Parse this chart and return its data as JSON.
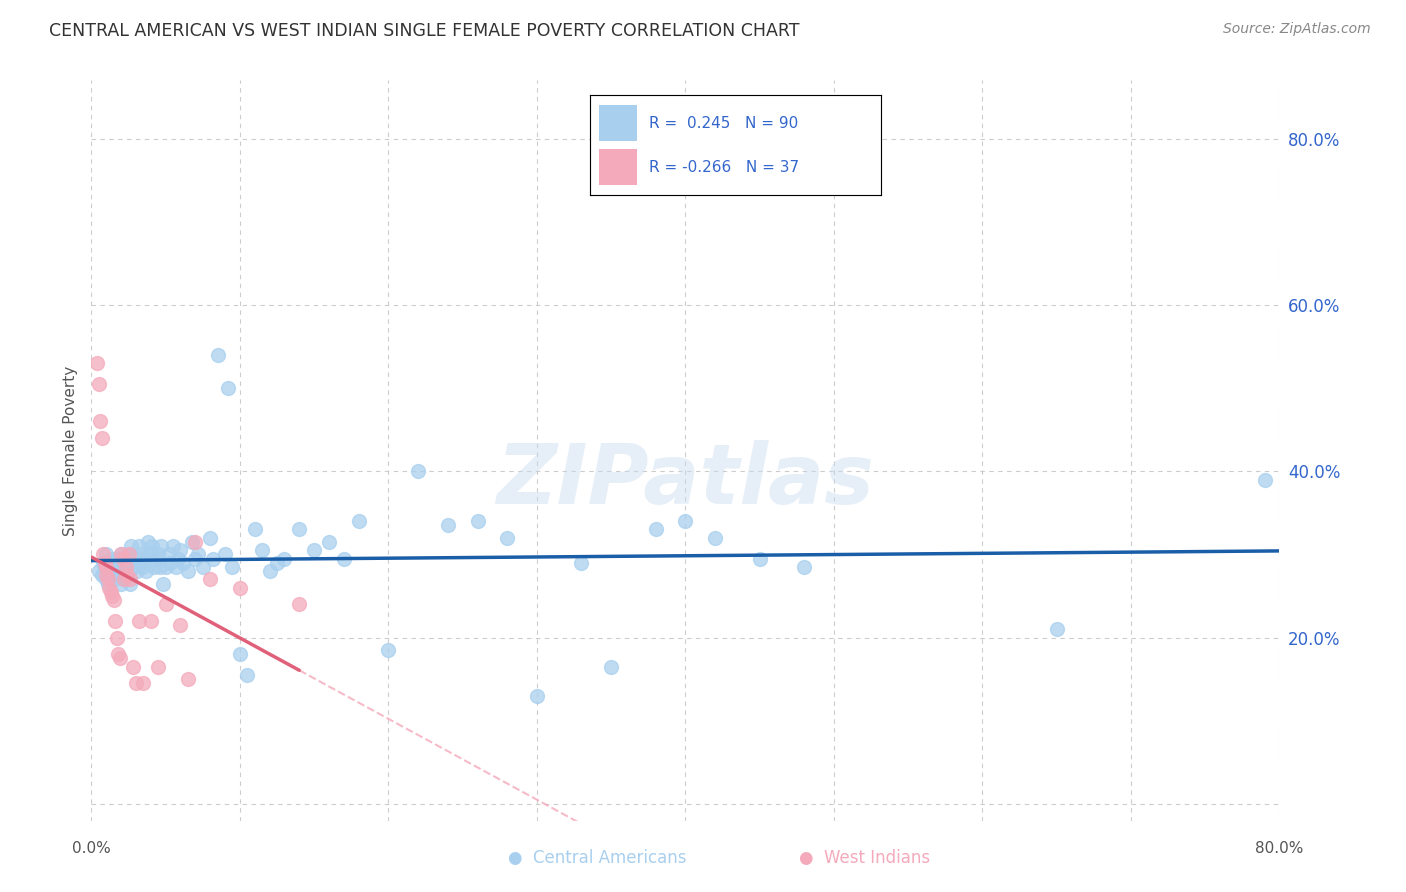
{
  "title": "CENTRAL AMERICAN VS WEST INDIAN SINGLE FEMALE POVERTY CORRELATION CHART",
  "source": "Source: ZipAtlas.com",
  "ylabel": "Single Female Poverty",
  "watermark": "ZIPatlas",
  "xlim": [
    0.0,
    0.8
  ],
  "ylim": [
    -0.02,
    0.87
  ],
  "yticks": [
    0.0,
    0.2,
    0.4,
    0.6,
    0.8
  ],
  "blue_R": 0.245,
  "blue_N": 90,
  "pink_R": -0.266,
  "pink_N": 37,
  "blue_color": "#A8CFEE",
  "pink_color": "#F4AABB",
  "blue_line_color": "#1A5EA8",
  "pink_line_color": "#E0607A",
  "pink_line_dash_color": "#F4AABB",
  "title_color": "#333333",
  "source_color": "#888888",
  "legend_text_color": "#3366CC",
  "right_axis_color": "#3366CC",
  "grid_color": "#CCCCCC",
  "background_color": "#FFFFFF",
  "blue_x": [
    0.005,
    0.007,
    0.008,
    0.009,
    0.01,
    0.01,
    0.011,
    0.012,
    0.013,
    0.014,
    0.015,
    0.016,
    0.017,
    0.018,
    0.019,
    0.02,
    0.02,
    0.021,
    0.022,
    0.022,
    0.023,
    0.024,
    0.025,
    0.025,
    0.026,
    0.027,
    0.028,
    0.03,
    0.031,
    0.032,
    0.033,
    0.034,
    0.035,
    0.036,
    0.037,
    0.038,
    0.04,
    0.041,
    0.042,
    0.043,
    0.045,
    0.046,
    0.047,
    0.048,
    0.05,
    0.052,
    0.053,
    0.055,
    0.057,
    0.058,
    0.06,
    0.062,
    0.065,
    0.068,
    0.07,
    0.072,
    0.075,
    0.08,
    0.082,
    0.085,
    0.09,
    0.092,
    0.095,
    0.1,
    0.105,
    0.11,
    0.115,
    0.12,
    0.125,
    0.13,
    0.14,
    0.15,
    0.16,
    0.17,
    0.18,
    0.2,
    0.22,
    0.24,
    0.26,
    0.28,
    0.3,
    0.33,
    0.35,
    0.38,
    0.4,
    0.42,
    0.45,
    0.48,
    0.65,
    0.79
  ],
  "blue_y": [
    0.28,
    0.275,
    0.29,
    0.285,
    0.3,
    0.27,
    0.265,
    0.285,
    0.295,
    0.28,
    0.275,
    0.27,
    0.295,
    0.285,
    0.275,
    0.3,
    0.265,
    0.28,
    0.295,
    0.27,
    0.285,
    0.29,
    0.3,
    0.275,
    0.265,
    0.31,
    0.285,
    0.295,
    0.28,
    0.31,
    0.3,
    0.285,
    0.29,
    0.295,
    0.28,
    0.315,
    0.3,
    0.31,
    0.285,
    0.295,
    0.3,
    0.285,
    0.31,
    0.265,
    0.285,
    0.3,
    0.29,
    0.31,
    0.285,
    0.295,
    0.305,
    0.29,
    0.28,
    0.315,
    0.295,
    0.3,
    0.285,
    0.32,
    0.295,
    0.54,
    0.3,
    0.5,
    0.285,
    0.18,
    0.155,
    0.33,
    0.305,
    0.28,
    0.29,
    0.295,
    0.33,
    0.305,
    0.315,
    0.295,
    0.34,
    0.185,
    0.4,
    0.335,
    0.34,
    0.32,
    0.13,
    0.29,
    0.165,
    0.33,
    0.34,
    0.32,
    0.295,
    0.285,
    0.21,
    0.39
  ],
  "pink_x": [
    0.004,
    0.005,
    0.006,
    0.007,
    0.008,
    0.009,
    0.01,
    0.01,
    0.011,
    0.012,
    0.013,
    0.014,
    0.015,
    0.016,
    0.017,
    0.018,
    0.019,
    0.02,
    0.021,
    0.022,
    0.023,
    0.024,
    0.025,
    0.026,
    0.028,
    0.03,
    0.032,
    0.035,
    0.04,
    0.045,
    0.05,
    0.06,
    0.065,
    0.07,
    0.08,
    0.1,
    0.14
  ],
  "pink_y": [
    0.53,
    0.505,
    0.46,
    0.44,
    0.3,
    0.29,
    0.285,
    0.275,
    0.27,
    0.26,
    0.255,
    0.25,
    0.245,
    0.22,
    0.2,
    0.18,
    0.175,
    0.3,
    0.295,
    0.27,
    0.285,
    0.275,
    0.3,
    0.27,
    0.165,
    0.145,
    0.22,
    0.145,
    0.22,
    0.165,
    0.24,
    0.215,
    0.15,
    0.315,
    0.27,
    0.26,
    0.24
  ]
}
